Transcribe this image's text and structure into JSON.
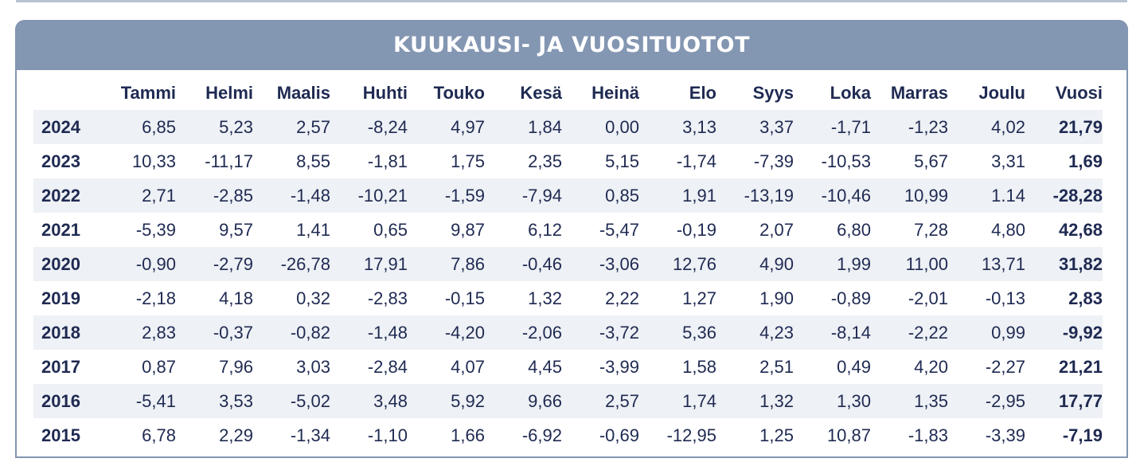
{
  "title": "KUUKAUSI- JA VUOSITUOTOT",
  "columns": [
    "Tammi",
    "Helmi",
    "Maalis",
    "Huhti",
    "Touko",
    "Kesä",
    "Heinä",
    "Elo",
    "Syys",
    "Loka",
    "Marras",
    "Joulu",
    "Vuosi"
  ],
  "rows": [
    {
      "year": "2024",
      "values": [
        "6,85",
        "5,23",
        "2,57",
        "-8,24",
        "4,97",
        "1,84",
        "0,00",
        "3,13",
        "3,37",
        "-1,71",
        "-1,23",
        "4,02",
        "21,79"
      ]
    },
    {
      "year": "2023",
      "values": [
        "10,33",
        "-11,17",
        "8,55",
        "-1,81",
        "1,75",
        "2,35",
        "5,15",
        "-1,74",
        "-7,39",
        "-10,53",
        "5,67",
        "3,31",
        "1,69"
      ]
    },
    {
      "year": "2022",
      "values": [
        "2,71",
        "-2,85",
        "-1,48",
        "-10,21",
        "-1,59",
        "-7,94",
        "0,85",
        "1,91",
        "-13,19",
        "-10,46",
        "10,99",
        "1.14",
        "-28,28"
      ]
    },
    {
      "year": "2021",
      "values": [
        "-5,39",
        "9,57",
        "1,41",
        "0,65",
        "9,87",
        "6,12",
        "-5,47",
        "-0,19",
        "2,07",
        "6,80",
        "7,28",
        "4,80",
        "42,68"
      ]
    },
    {
      "year": "2020",
      "values": [
        "-0,90",
        "-2,79",
        "-26,78",
        "17,91",
        "7,86",
        "-0,46",
        "-3,06",
        "12,76",
        "4,90",
        "1,99",
        "11,00",
        "13,71",
        "31,82"
      ]
    },
    {
      "year": "2019",
      "values": [
        "-2,18",
        "4,18",
        "0,32",
        "-2,83",
        "-0,15",
        "1,32",
        "2,22",
        "1,27",
        "1,90",
        "-0,89",
        "-2,01",
        "-0,13",
        "2,83"
      ]
    },
    {
      "year": "2018",
      "values": [
        "2,83",
        "-0,37",
        "-0,82",
        "-1,48",
        "-4,20",
        "-2,06",
        "-3,72",
        "5,36",
        "4,23",
        "-8,14",
        "-2,22",
        "0,99",
        "-9,92"
      ]
    },
    {
      "year": "2017",
      "values": [
        "0,87",
        "7,96",
        "3,03",
        "-2,84",
        "4,07",
        "4,45",
        "-3,99",
        "1,58",
        "2,51",
        "0,49",
        "4,20",
        "-2,27",
        "21,21"
      ]
    },
    {
      "year": "2016",
      "values": [
        "-5,41",
        "3,53",
        "-5,02",
        "3,48",
        "5,92",
        "9,66",
        "2,57",
        "1,74",
        "1,32",
        "1,30",
        "1,35",
        "-2,95",
        "17,77"
      ]
    },
    {
      "year": "2015",
      "values": [
        "6,78",
        "2,29",
        "-1,34",
        "-1,10",
        "1,66",
        "-6,92",
        "-0,69",
        "-12,95",
        "1,25",
        "10,87",
        "-1,83",
        "-3,39",
        "-7,19"
      ]
    }
  ],
  "colors": {
    "header_bg": "#8396b2",
    "text": "#1f2a52",
    "stripe": "#eef1f5"
  }
}
